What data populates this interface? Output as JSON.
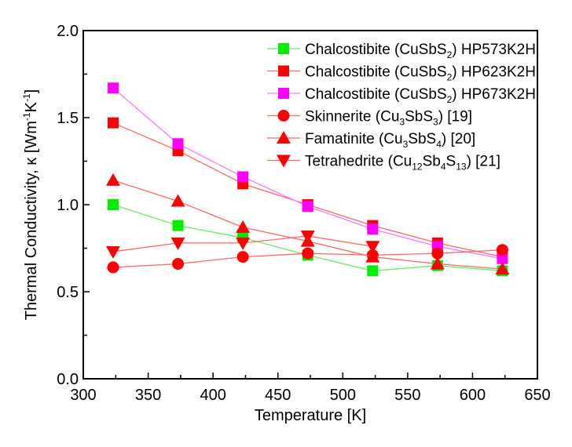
{
  "chart_data": {
    "type": "line",
    "title": "",
    "xlabel": "Temperature [K]",
    "ylabel": "Thermal Conductivity, κ [Wm⁻¹K⁻¹]",
    "xlim": [
      300,
      650
    ],
    "ylim": [
      0.0,
      2.0
    ],
    "xticks": [
      300,
      350,
      400,
      450,
      500,
      550,
      600,
      650
    ],
    "yticks": [
      0.0,
      0.5,
      1.0,
      1.5,
      2.0
    ],
    "xtick_labels": [
      "300",
      "350",
      "400",
      "450",
      "500",
      "550",
      "600",
      "650"
    ],
    "ytick_labels": [
      "0.0",
      "0.5",
      "1.0",
      "1.5",
      "2.0"
    ],
    "grid": false,
    "legend_position": "top-right",
    "series": [
      {
        "name": "Chalcostibite (CuSbS2) HP573K2H",
        "label_parts": [
          "Chalcostibite (CuSbS",
          "2",
          ") HP573K2H"
        ],
        "marker": "square",
        "color": "#00ee00",
        "line_color": "#66ee66",
        "x": [
          323,
          373,
          423,
          473,
          523,
          573,
          623
        ],
        "y": [
          1.0,
          0.88,
          0.81,
          0.71,
          0.62,
          0.65,
          0.62
        ]
      },
      {
        "name": "Chalcostibite (CuSbS2) HP623K2H",
        "label_parts": [
          "Chalcostibite (CuSbS",
          "2",
          ") HP623K2H"
        ],
        "marker": "square",
        "color": "#ff0000",
        "line_color": "#ff6666",
        "x": [
          323,
          373,
          423,
          473,
          523,
          573,
          623
        ],
        "y": [
          1.47,
          1.31,
          1.12,
          1.0,
          0.88,
          0.78,
          0.7
        ]
      },
      {
        "name": "Chalcostibite (CuSbS2) HP673K2H",
        "label_parts": [
          "Chalcostibite (CuSbS",
          "2",
          ") HP673K2H"
        ],
        "marker": "square",
        "color": "#ff00ff",
        "line_color": "#ff77ff",
        "x": [
          323,
          373,
          423,
          473,
          523,
          573,
          623
        ],
        "y": [
          1.67,
          1.35,
          1.16,
          0.99,
          0.86,
          0.76,
          0.69
        ]
      },
      {
        "name": "Skinnerite (Cu3SbS3) [19]",
        "label_parts": [
          "Skinnerite (Cu",
          "3",
          "SbS",
          "3",
          ")  [19]"
        ],
        "marker": "circle",
        "color": "#ff0000",
        "line_color": "#ff6666",
        "x": [
          323,
          373,
          423,
          473,
          523,
          573,
          623
        ],
        "y": [
          0.64,
          0.66,
          0.7,
          0.72,
          0.71,
          0.72,
          0.74
        ]
      },
      {
        "name": "Famatinite (Cu3SbS4) [20]",
        "label_parts": [
          "Famatinite (Cu",
          "3",
          "SbS",
          "4",
          ")  [20]"
        ],
        "marker": "triangle-up",
        "color": "#ff0000",
        "line_color": "#ff6666",
        "x": [
          323,
          373,
          423,
          473,
          523,
          573,
          623
        ],
        "y": [
          1.14,
          1.02,
          0.87,
          0.79,
          0.7,
          0.66,
          0.63
        ]
      },
      {
        "name": "Tetrahedrite (Cu12Sb4S13) [21]",
        "label_parts": [
          "Tetrahedrite (Cu",
          "12",
          "Sb",
          "4",
          "S",
          "13",
          ")  [21]"
        ],
        "marker": "triangle-down",
        "color": "#ff0000",
        "line_color": "#ff6666",
        "x": [
          323,
          373,
          423,
          473,
          523
        ],
        "y": [
          0.73,
          0.78,
          0.78,
          0.82,
          0.76
        ]
      }
    ]
  }
}
